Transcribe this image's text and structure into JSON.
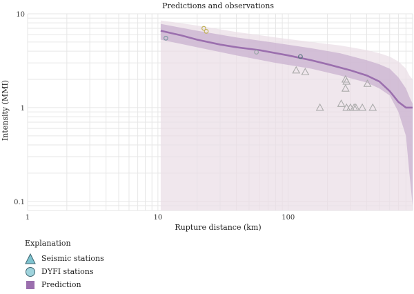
{
  "chart_data": {
    "type": "scatter",
    "title": "Predictions and observations",
    "xlabel": "Rupture distance (km)",
    "ylabel": "Intensity (MMI)",
    "x_scale": "log",
    "y_scale": "log",
    "xlim": [
      1,
      900
    ],
    "ylim": [
      0.08,
      10
    ],
    "x_ticks": [
      1,
      10,
      100
    ],
    "y_ticks": [
      0.1,
      1,
      10
    ],
    "x_tick_labels": [
      "1",
      "10",
      "100"
    ],
    "y_tick_labels": [
      "0.1",
      "1",
      "10"
    ],
    "grid": true,
    "prediction": {
      "name": "Prediction",
      "color": "#9b6fae",
      "x": [
        10.5,
        15,
        20,
        30,
        40,
        60,
        100,
        150,
        200,
        300,
        400,
        500,
        600,
        700,
        800,
        900
      ],
      "y": [
        6.6,
        5.9,
        5.3,
        4.7,
        4.4,
        4.1,
        3.6,
        3.2,
        2.9,
        2.5,
        2.2,
        1.9,
        1.5,
        1.15,
        1.0,
        1.0
      ],
      "band_x": [
        10.5,
        20,
        40,
        80,
        150,
        250,
        400,
        500,
        600,
        700,
        800,
        850,
        900
      ],
      "band_upper": [
        7.8,
        6.6,
        5.6,
        4.9,
        4.3,
        3.8,
        3.2,
        2.9,
        2.6,
        2.1,
        1.6,
        1.3,
        1.1
      ],
      "band_lower": [
        5.3,
        4.4,
        3.6,
        3.0,
        2.6,
        2.2,
        1.85,
        1.6,
        1.35,
        0.9,
        0.5,
        0.2,
        0.09
      ],
      "outer_upper": [
        8.5,
        7.5,
        6.4,
        5.6,
        5.0,
        4.6,
        4.1,
        3.8,
        3.5,
        3.1,
        2.6,
        2.2,
        2.0
      ],
      "outer_lower": [
        0.08,
        0.08,
        0.08,
        0.08,
        0.08,
        0.08,
        0.08,
        0.08,
        0.08,
        0.08,
        0.08,
        0.08,
        0.08
      ]
    },
    "series": [
      {
        "name": "Seismic stations",
        "marker": "triangle",
        "color": "#aaaaaa",
        "points": [
          {
            "x": 115,
            "y": 2.5
          },
          {
            "x": 135,
            "y": 2.4
          },
          {
            "x": 175,
            "y": 1.0
          },
          {
            "x": 255,
            "y": 1.1
          },
          {
            "x": 275,
            "y": 2.0
          },
          {
            "x": 280,
            "y": 1.9
          },
          {
            "x": 275,
            "y": 1.6
          },
          {
            "x": 280,
            "y": 1.0
          },
          {
            "x": 300,
            "y": 1.0
          },
          {
            "x": 320,
            "y": 1.0
          },
          {
            "x": 330,
            "y": 1.0
          },
          {
            "x": 370,
            "y": 1.0
          },
          {
            "x": 405,
            "y": 1.8
          },
          {
            "x": 445,
            "y": 1.0
          }
        ]
      },
      {
        "name": "DYFI stations",
        "marker": "circle",
        "points": [
          {
            "x": 11.5,
            "y": 5.5,
            "color": "#7f9aa3"
          },
          {
            "x": 22.5,
            "y": 7.0,
            "color": "#c2b35a"
          },
          {
            "x": 23.5,
            "y": 6.5,
            "color": "#c2b35a"
          },
          {
            "x": 57,
            "y": 3.9,
            "color": "#9aa5a8"
          },
          {
            "x": 124,
            "y": 3.5,
            "color": "#58747d"
          }
        ]
      }
    ],
    "legend": {
      "title": "Explanation",
      "placement": "bottom-left",
      "items": [
        {
          "label": "Seismic stations",
          "symbol": "triangle",
          "fill": "#7ec3cf",
          "stroke": "#3d6570"
        },
        {
          "label": "DYFI stations",
          "symbol": "circle",
          "fill": "#9fd3dc",
          "stroke": "#3d6570"
        },
        {
          "label": "Prediction",
          "symbol": "square",
          "fill": "#9b6fae",
          "stroke": "#9b6fae"
        }
      ]
    }
  }
}
